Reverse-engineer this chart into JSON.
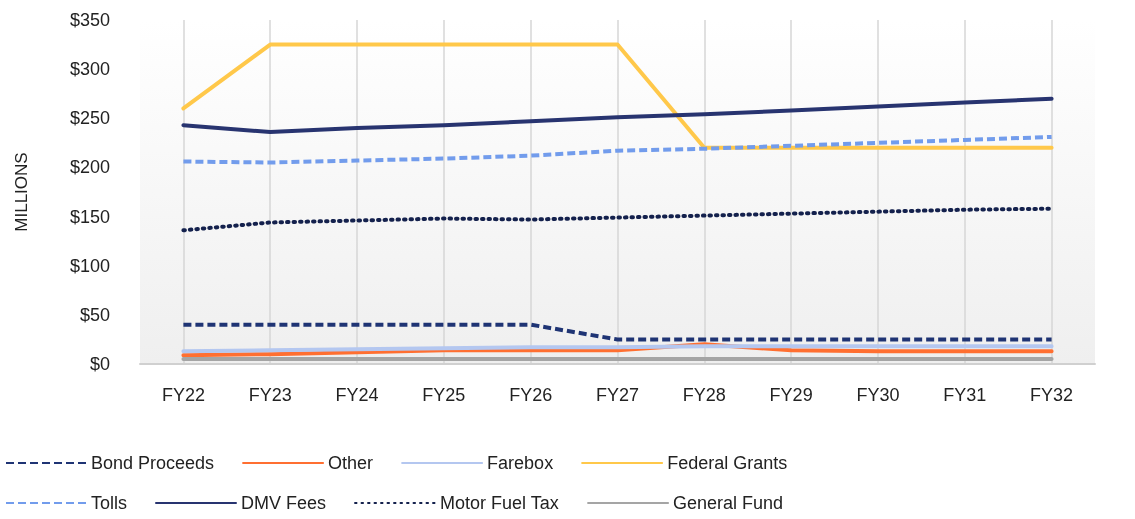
{
  "chart_data": {
    "type": "line",
    "ylabel": "MILLIONS",
    "categories": [
      "FY22",
      "FY23",
      "FY24",
      "FY25",
      "FY26",
      "FY27",
      "FY28",
      "FY29",
      "FY30",
      "FY31",
      "FY32"
    ],
    "series": [
      {
        "name": "Bond Proceeds",
        "color": "#1f3474",
        "line_style": "dashed",
        "values": [
          40,
          40,
          40,
          40,
          40,
          25,
          25,
          25,
          25,
          25,
          25
        ]
      },
      {
        "name": "Other",
        "color": "#ff6f31",
        "line_style": "solid",
        "values": [
          9,
          10,
          12,
          14,
          14,
          14,
          20,
          14,
          13,
          13,
          13
        ]
      },
      {
        "name": "Farebox",
        "color": "#b4c7f0",
        "line_style": "solid",
        "values": [
          13,
          14,
          15,
          16,
          17,
          17,
          18,
          18,
          18,
          18,
          18
        ]
      },
      {
        "name": "Federal Grants",
        "color": "#ffc84a",
        "line_style": "solid",
        "values": [
          260,
          325,
          325,
          325,
          325,
          325,
          220,
          220,
          220,
          220,
          220
        ]
      },
      {
        "name": "Tolls",
        "color": "#729cec",
        "line_style": "dashed",
        "values": [
          206,
          205,
          207,
          209,
          212,
          217,
          219,
          222,
          225,
          228,
          231
        ]
      },
      {
        "name": "DMV Fees",
        "color": "#283470",
        "line_style": "solid",
        "values": [
          243,
          236,
          240,
          243,
          247,
          251,
          254,
          258,
          262,
          266,
          270
        ]
      },
      {
        "name": "Motor Fuel Tax",
        "color": "#14214d",
        "line_style": "dotted",
        "values": [
          136,
          144,
          146,
          148,
          147,
          149,
          151,
          153,
          155,
          157,
          158
        ]
      },
      {
        "name": "General Fund",
        "color": "#a5a5a5",
        "line_style": "solid",
        "values": [
          5,
          5,
          5,
          5,
          5,
          5,
          5,
          5,
          5,
          5,
          5
        ]
      }
    ],
    "ylim": [
      0,
      350
    ],
    "yticks": [
      {
        "value": 0,
        "label": "$0"
      },
      {
        "value": 50,
        "label": "$50"
      },
      {
        "value": 100,
        "label": "$100"
      },
      {
        "value": 150,
        "label": "$150"
      },
      {
        "value": 200,
        "label": "$200"
      },
      {
        "value": 250,
        "label": "$250"
      },
      {
        "value": 300,
        "label": "$300"
      },
      {
        "value": 350,
        "label": "$350"
      }
    ],
    "grid": "x",
    "legend": "bottom",
    "marker": "none"
  }
}
